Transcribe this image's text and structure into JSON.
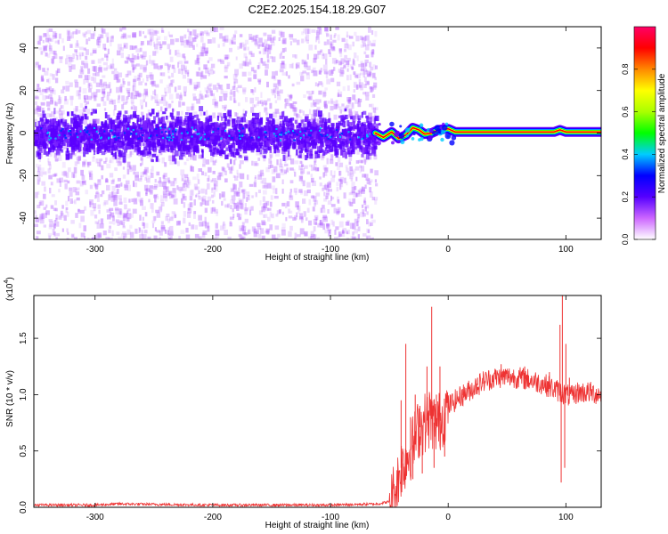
{
  "figure": {
    "title": "C2E2.2025.154.18.29.G07"
  },
  "chart_data": [
    {
      "type": "heatmap",
      "panel": "spectrogram",
      "xlabel": "Height of straight line (km)",
      "ylabel": "Frequency (Hz)",
      "xlim": [
        -352,
        130
      ],
      "ylim": [
        -50,
        50
      ],
      "x_ticks": [
        -300,
        -200,
        -100,
        0,
        100
      ],
      "x_tick_labels": [
        "-300",
        "-200",
        "-100",
        "0",
        "100"
      ],
      "y_ticks": [
        -40,
        -20,
        0,
        20,
        40
      ],
      "y_tick_labels": [
        "-40",
        "-20",
        "0",
        "20",
        "40"
      ],
      "grid": false,
      "noise_region_x": [
        -352,
        -62
      ],
      "noise_band_halfwidth_hz": 8,
      "signal_track": [
        {
          "x": -62,
          "y": 0.0
        },
        {
          "x": -55,
          "y": -2.0
        },
        {
          "x": -48,
          "y": 0.5
        },
        {
          "x": -42,
          "y": -2.5
        },
        {
          "x": -36,
          "y": -1.0
        },
        {
          "x": -30,
          "y": 2.5
        },
        {
          "x": -25,
          "y": 1.5
        },
        {
          "x": -20,
          "y": -0.5
        },
        {
          "x": -14,
          "y": 0.0
        },
        {
          "x": -8,
          "y": 1.5
        },
        {
          "x": 0,
          "y": 2.0
        },
        {
          "x": 6,
          "y": 0.5
        },
        {
          "x": 90,
          "y": 0.5
        },
        {
          "x": 95,
          "y": 1.5
        },
        {
          "x": 100,
          "y": 0.5
        },
        {
          "x": 130,
          "y": 0.5
        }
      ],
      "colorbar": {
        "label": "Normalized spectral amplitude",
        "range": [
          0.0,
          1.0
        ],
        "ticks": [
          0.0,
          0.2,
          0.4,
          0.6,
          0.8
        ],
        "tick_labels": [
          "0.0",
          "0.2",
          "0.4",
          "0.6",
          "0.8"
        ],
        "colors": [
          "#ffffff",
          "#cc66ff",
          "#5500ff",
          "#0000ff",
          "#00ccff",
          "#00ff00",
          "#aaff00",
          "#ffff00",
          "#ff8800",
          "#ff0000",
          "#ff0066"
        ]
      }
    },
    {
      "type": "line",
      "panel": "snr",
      "xlabel": "Height of straight line (km)",
      "ylabel": "SNR (10 * v/v)",
      "y_scale_label": "(x10",
      "y_scale_exponent": "4",
      "xlim": [
        -352,
        130
      ],
      "ylim": [
        0,
        1.88
      ],
      "x_ticks": [
        -300,
        -200,
        -100,
        0,
        100
      ],
      "x_tick_labels": [
        "-300",
        "-200",
        "-100",
        "0",
        "100"
      ],
      "y_ticks": [
        0.0,
        0.5,
        1.0,
        1.5
      ],
      "y_tick_labels": [
        "0.0",
        "0.5",
        "1.0",
        "1.5"
      ],
      "grid": false,
      "series": [
        {
          "color": "#ee3333",
          "envelope": [
            {
              "x": -352,
              "y": 0.02
            },
            {
              "x": -300,
              "y": 0.02
            },
            {
              "x": -280,
              "y": 0.03
            },
            {
              "x": -200,
              "y": 0.02
            },
            {
              "x": -100,
              "y": 0.02
            },
            {
              "x": -60,
              "y": 0.03
            },
            {
              "x": -50,
              "y": 0.05
            },
            {
              "x": -45,
              "y": 0.15
            },
            {
              "x": -40,
              "y": 0.35
            },
            {
              "x": -35,
              "y": 0.45
            },
            {
              "x": -30,
              "y": 0.55
            },
            {
              "x": -25,
              "y": 0.7
            },
            {
              "x": -20,
              "y": 0.75
            },
            {
              "x": -15,
              "y": 0.8
            },
            {
              "x": -10,
              "y": 0.72
            },
            {
              "x": -5,
              "y": 0.8
            },
            {
              "x": 0,
              "y": 0.9
            },
            {
              "x": 10,
              "y": 0.98
            },
            {
              "x": 20,
              "y": 1.05
            },
            {
              "x": 30,
              "y": 1.12
            },
            {
              "x": 40,
              "y": 1.15
            },
            {
              "x": 50,
              "y": 1.16
            },
            {
              "x": 60,
              "y": 1.15
            },
            {
              "x": 70,
              "y": 1.13
            },
            {
              "x": 80,
              "y": 1.1
            },
            {
              "x": 90,
              "y": 1.05
            },
            {
              "x": 100,
              "y": 1.0
            },
            {
              "x": 105,
              "y": 0.98
            },
            {
              "x": 110,
              "y": 1.02
            },
            {
              "x": 120,
              "y": 1.02
            },
            {
              "x": 130,
              "y": 1.0
            }
          ],
          "spikes": [
            {
              "x": -40,
              "y": 0.95
            },
            {
              "x": -36,
              "y": 1.45
            },
            {
              "x": -32,
              "y": 0.8
            },
            {
              "x": -28,
              "y": 1.0
            },
            {
              "x": -24,
              "y": 0.9
            },
            {
              "x": -18,
              "y": 1.25
            },
            {
              "x": -14,
              "y": 1.78
            },
            {
              "x": -10,
              "y": 1.0
            },
            {
              "x": -7,
              "y": 1.25
            },
            {
              "x": 12,
              "y": 1.05
            },
            {
              "x": 25,
              "y": 1.15
            },
            {
              "x": 45,
              "y": 1.27
            },
            {
              "x": 65,
              "y": 1.25
            },
            {
              "x": 86,
              "y": 1.2
            },
            {
              "x": 95,
              "y": 1.62
            },
            {
              "x": 97,
              "y": 1.88
            },
            {
              "x": 100,
              "y": 1.45
            },
            {
              "x": 103,
              "y": 1.15
            }
          ],
          "dips": [
            {
              "x": -38,
              "y": 0.2
            },
            {
              "x": -30,
              "y": 0.25
            },
            {
              "x": -22,
              "y": 0.3
            },
            {
              "x": -12,
              "y": 0.35
            },
            {
              "x": -3,
              "y": 0.45
            },
            {
              "x": 96,
              "y": 0.22
            },
            {
              "x": 99,
              "y": 0.35
            }
          ]
        }
      ]
    }
  ]
}
